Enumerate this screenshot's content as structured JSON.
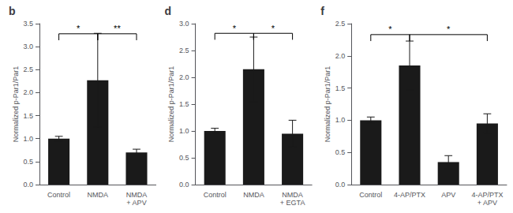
{
  "chart_data": [
    {
      "type": "bar",
      "title": "b",
      "categories": [
        "Control",
        "NMDA",
        "NMDA\n+ APV"
      ],
      "values": [
        1.0,
        2.27,
        0.7
      ],
      "errors": [
        0.05,
        1.02,
        0.07
      ],
      "color": "#1a1a1a",
      "ylabel": "Normalized p-Par1/Par1",
      "ylim": [
        0,
        3.5
      ],
      "yticks": [
        {
          "value": 0,
          "label": "0.0"
        },
        0.5,
        {
          "value": 1,
          "label": "1.0"
        },
        1.5,
        {
          "value": 2,
          "label": "2.0"
        },
        2.5,
        {
          "value": 3,
          "label": "3.0"
        },
        3.5
      ],
      "significance": [
        {
          "from": "Control",
          "to": "NMDA",
          "y": 3.28,
          "label": "*"
        },
        {
          "from": "NMDA",
          "to": "NMDA\n+ APV",
          "y": 3.28,
          "label": "**"
        }
      ]
    },
    {
      "type": "bar",
      "title": "d",
      "categories": [
        "Control",
        "NMDA",
        "NMDA\n+ EGTA"
      ],
      "values": [
        1.0,
        2.15,
        0.95
      ],
      "errors": [
        0.05,
        0.6,
        0.25
      ],
      "color": "#1a1a1a",
      "ylabel": "Normalized p-Par1/Par1",
      "ylim": [
        0,
        3.0
      ],
      "yticks": [
        {
          "value": 0,
          "label": "0.0"
        },
        0.5,
        {
          "value": 1,
          "label": "1.0"
        },
        1.5,
        {
          "value": 2,
          "label": "2.0"
        },
        2.5,
        {
          "value": 3,
          "label": "3.0"
        }
      ],
      "significance": [
        {
          "from": "Control",
          "to": "NMDA",
          "y": 2.82,
          "label": "*"
        },
        {
          "from": "NMDA",
          "to": "NMDA\n+ EGTA",
          "y": 2.82,
          "label": "*"
        }
      ]
    },
    {
      "type": "bar",
      "title": "f",
      "categories": [
        "Control",
        "4-AP/PTX",
        "APV",
        "4-AP/PTX\n+ APV"
      ],
      "values": [
        1.0,
        1.85,
        0.35,
        0.95
      ],
      "errors": [
        0.05,
        0.38,
        0.1,
        0.15
      ],
      "color": "#1a1a1a",
      "ylabel": "Normalized p-Par1/Par1",
      "ylim": [
        0,
        2.5
      ],
      "yticks": [
        {
          "value": 0,
          "label": "0.0"
        },
        0.5,
        {
          "value": 1,
          "label": "1.0"
        },
        1.5,
        {
          "value": 2,
          "label": "2.0"
        },
        2.5
      ],
      "significance": [
        {
          "from": "Control",
          "to": "4-AP/PTX",
          "y": 2.33,
          "label": "*"
        },
        {
          "from": "4-AP/PTX",
          "to": "4-AP/PTX\n+ APV",
          "y": 2.33,
          "label": "*"
        }
      ]
    }
  ]
}
